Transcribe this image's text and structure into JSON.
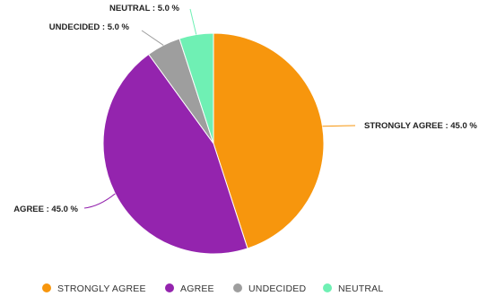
{
  "chart_data": {
    "type": "pie",
    "title": "",
    "categories": [
      "STRONGLY AGREE",
      "AGREE",
      "UNDECIDED",
      "NEUTRAL"
    ],
    "values": [
      45.0,
      45.0,
      5.0,
      5.0
    ],
    "unit": "%",
    "data_labels": [
      "STRONGLY AGREE : 45.0 %",
      "AGREE : 45.0 %",
      "UNDECIDED : 5.0 %",
      "NEUTRAL : 5.0 %"
    ],
    "colors": [
      "#f7960d",
      "#9424ae",
      "#9e9e9e",
      "#6ff0b4"
    ],
    "legend": {
      "placement": "bottom",
      "items": [
        "STRONGLY AGREE",
        "AGREE",
        "UNDECIDED",
        "NEUTRAL"
      ]
    },
    "start_angle": "top, clockwise"
  }
}
